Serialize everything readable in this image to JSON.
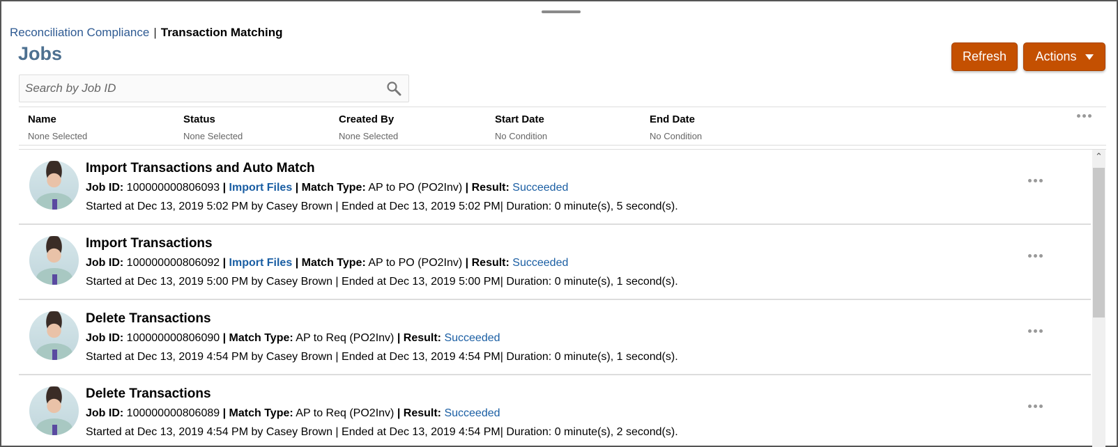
{
  "breadcrumb": {
    "parent": "Reconciliation Compliance",
    "separator": "|",
    "current": "Transaction Matching"
  },
  "page_title": "Jobs",
  "toolbar": {
    "refresh_label": "Refresh",
    "actions_label": "Actions"
  },
  "search": {
    "placeholder": "Search by Job ID",
    "value": ""
  },
  "filters": [
    {
      "label": "Name",
      "value": "None Selected"
    },
    {
      "label": "Status",
      "value": "None Selected"
    },
    {
      "label": "Created By",
      "value": "None Selected"
    },
    {
      "label": "Start Date",
      "value": "No Condition"
    },
    {
      "label": "End Date",
      "value": "No Condition"
    }
  ],
  "labels": {
    "job_id": "Job ID:",
    "match_type": "Match Type:",
    "result": "Result:",
    "sep": "|"
  },
  "colors": {
    "accent": "#c45001",
    "link": "#1a5ea3",
    "title": "#4d7090"
  },
  "jobs": [
    {
      "title": "Import Transactions and Auto Match",
      "job_id": "100000000806093",
      "link": "Import Files",
      "match_type": "AP to PO (PO2Inv)",
      "result": "Succeeded",
      "details": "Started at Dec 13, 2019 5:02 PM by Casey Brown | Ended at Dec 13, 2019 5:02 PM| Duration: 0 minute(s), 5 second(s)."
    },
    {
      "title": "Import Transactions",
      "job_id": "100000000806092",
      "link": "Import Files",
      "match_type": "AP to PO (PO2Inv)",
      "result": "Succeeded",
      "details": "Started at Dec 13, 2019 5:00 PM by Casey Brown | Ended at Dec 13, 2019 5:00 PM| Duration: 0 minute(s), 1 second(s)."
    },
    {
      "title": "Delete Transactions",
      "job_id": "100000000806090",
      "link": null,
      "match_type": "AP to Req (PO2Inv)",
      "result": "Succeeded",
      "details": "Started at Dec 13, 2019 4:54 PM by Casey Brown | Ended at Dec 13, 2019 4:54 PM| Duration: 0 minute(s), 1 second(s)."
    },
    {
      "title": "Delete Transactions",
      "job_id": "100000000806089",
      "link": null,
      "match_type": "AP to Req (PO2Inv)",
      "result": "Succeeded",
      "details": "Started at Dec 13, 2019 4:54 PM by Casey Brown | Ended at Dec 13, 2019 4:54 PM| Duration: 0 minute(s), 2 second(s)."
    }
  ]
}
